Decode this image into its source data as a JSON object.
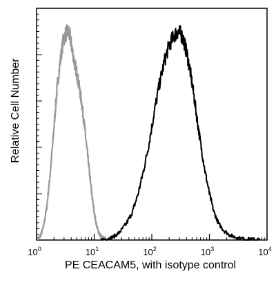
{
  "chart_data": {
    "type": "line",
    "title": "",
    "xlabel": "PE CEACAM5,  with isotype control",
    "ylabel": "Relative Cell Number",
    "x_scale": "log",
    "xlim": [
      1,
      10000
    ],
    "ylim": [
      0,
      100
    ],
    "x_ticks": [
      {
        "base": "10",
        "exp": "0",
        "value": 1
      },
      {
        "base": "10",
        "exp": "1",
        "value": 10
      },
      {
        "base": "10",
        "exp": "2",
        "value": 100
      },
      {
        "base": "10",
        "exp": "3",
        "value": 1000
      },
      {
        "base": "10",
        "exp": "4",
        "value": 10000
      }
    ],
    "y_ticks_labeled": false,
    "grid": false,
    "series": [
      {
        "color": "#999999",
        "x": [
          1.05,
          1.15,
          1.3,
          1.5,
          1.7,
          1.9,
          2.1,
          2.3,
          2.6,
          2.9,
          3.2,
          3.5,
          3.8,
          4.1,
          4.5,
          5.0,
          5.5,
          6.0,
          6.6,
          7.2,
          7.9,
          8.6,
          9.4,
          10.3,
          11.3,
          12.4,
          13.6,
          15.0,
          17.0,
          20.0
        ],
        "values": [
          0.5,
          1.5,
          5,
          14,
          27,
          41,
          55,
          67,
          78,
          86,
          89,
          90,
          88,
          83,
          77,
          72,
          66,
          60,
          52,
          43,
          34,
          25,
          17,
          10,
          5,
          2.5,
          1.2,
          0.6,
          0.3,
          0.1
        ]
      },
      {
        "color": "#000000",
        "x": [
          13,
          17,
          22,
          28,
          36,
          46,
          58,
          72,
          90,
          110,
          135,
          165,
          200,
          240,
          280,
          320,
          360,
          410,
          470,
          540,
          620,
          720,
          850,
          1000,
          1200,
          1450,
          1800,
          2300,
          3000,
          4000,
          5500,
          7500
        ],
        "values": [
          0.1,
          0.5,
          1.5,
          3.5,
          7,
          12,
          20,
          30,
          42,
          55,
          67,
          77,
          84,
          88,
          90,
          89,
          86,
          80,
          72,
          62,
          51,
          40,
          29,
          20,
          12,
          7,
          4,
          2,
          1,
          0.5,
          0.3,
          0.1
        ]
      }
    ]
  }
}
